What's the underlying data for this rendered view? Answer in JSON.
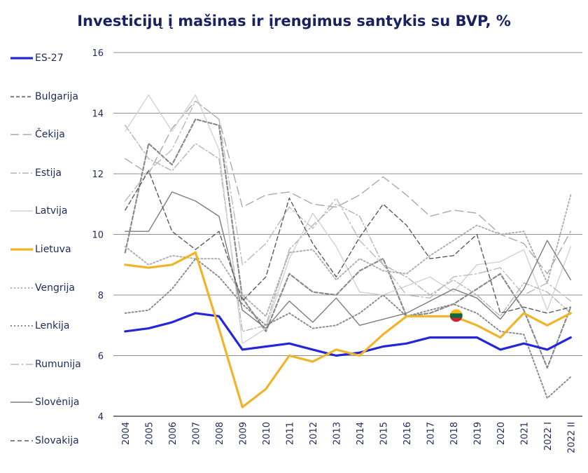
{
  "chart_data": {
    "type": "line",
    "title": "Investicijų į mašinas ir įrengimus santykis su BVP, %",
    "xlabel": "",
    "ylabel": "",
    "ylim": [
      4,
      16
    ],
    "yticks": [
      4,
      6,
      8,
      10,
      12,
      14,
      16
    ],
    "categories": [
      "2004",
      "2005",
      "2006",
      "2007",
      "2008",
      "2009",
      "2010",
      "2011",
      "2012",
      "2013",
      "2014",
      "2015",
      "2016",
      "2017",
      "2018",
      "2019",
      "2020",
      "2021",
      "2022 I",
      "2022 II"
    ],
    "legend_position": "left",
    "series": [
      {
        "name": "ES-27",
        "color": "#2626d9",
        "dash": "",
        "width": 3.2,
        "values": [
          6.8,
          6.9,
          7.1,
          7.4,
          7.3,
          6.2,
          6.3,
          6.4,
          6.2,
          6.0,
          6.1,
          6.3,
          6.4,
          6.6,
          6.6,
          6.6,
          6.2,
          6.4,
          6.2,
          6.6
        ]
      },
      {
        "name": "Bulgarija",
        "color": "#8a8a8a",
        "dash": "5,3",
        "width": 2.2,
        "values": [
          9.4,
          13.0,
          12.3,
          13.8,
          13.6,
          7.9,
          6.8,
          8.7,
          8.1,
          8.0,
          8.8,
          9.2,
          7.3,
          7.4,
          7.7,
          8.2,
          8.7,
          7.5,
          5.6,
          7.6
        ]
      },
      {
        "name": "Čekija",
        "color": "#aaaaaa",
        "dash": "12,6",
        "width": 1.4,
        "values": [
          12.5,
          12.0,
          13.5,
          14.4,
          13.8,
          10.9,
          11.3,
          11.4,
          11.0,
          10.9,
          11.3,
          11.9,
          11.3,
          10.6,
          10.8,
          10.7,
          10.0,
          9.7,
          8.7,
          10.1
        ]
      },
      {
        "name": "Estija",
        "color": "#b4b4b4",
        "dash": "9,3,2,3",
        "width": 1.4,
        "values": [
          13.6,
          12.5,
          12.1,
          13.0,
          12.5,
          6.8,
          7.0,
          9.5,
          10.3,
          11.0,
          10.6,
          9.0,
          8.6,
          8.0,
          8.5,
          8.0,
          7.3,
          8.4,
          8.1,
          7.4
        ]
      },
      {
        "name": "Latvija",
        "color": "#d2d2d2",
        "dash": "",
        "width": 1.4,
        "values": [
          13.4,
          14.6,
          13.4,
          14.6,
          12.8,
          6.4,
          6.9,
          9.2,
          10.7,
          9.6,
          8.1,
          8.0,
          8.3,
          8.6,
          8.1,
          9.0,
          9.1,
          9.5,
          7.5,
          9.6
        ]
      },
      {
        "name": "Lietuva",
        "color": "#f0b429",
        "dash": "",
        "width": 3.2,
        "values": [
          9.0,
          8.9,
          9.0,
          9.4,
          6.9,
          4.3,
          4.9,
          6.0,
          5.8,
          6.2,
          6.0,
          6.7,
          7.3,
          7.3,
          7.3,
          7.0,
          6.6,
          7.4,
          7.0,
          7.4
        ]
      },
      {
        "name": "Vengrija",
        "color": "#b0b0b0",
        "dash": "2,3",
        "width": 2.0,
        "values": [
          9.6,
          9.0,
          9.3,
          9.2,
          9.2,
          8.0,
          7.3,
          9.4,
          9.5,
          8.5,
          9.2,
          8.8,
          8.7,
          9.3,
          9.8,
          10.3,
          10.0,
          10.1,
          8.4,
          11.3
        ]
      },
      {
        "name": "Lenkija",
        "color": "#8c8c8c",
        "dash": "2,3",
        "width": 2.0,
        "values": [
          7.4,
          7.5,
          8.2,
          9.2,
          8.6,
          7.7,
          7.0,
          7.4,
          6.9,
          7.0,
          7.4,
          8.0,
          7.3,
          7.5,
          7.7,
          7.4,
          6.8,
          6.7,
          4.6,
          5.3
        ]
      },
      {
        "name": "Rumunija",
        "color": "#bbbbbb",
        "dash": "12,4,2,4",
        "width": 1.4,
        "values": [
          11.1,
          12.1,
          12.8,
          14.4,
          13.8,
          9.0,
          9.7,
          10.9,
          10.2,
          11.2,
          9.8,
          9.0,
          8.0,
          7.9,
          8.6,
          8.7,
          8.9,
          8.0,
          8.4,
          7.8
        ]
      },
      {
        "name": "Slovėnija",
        "color": "#7d7d7d",
        "dash": "",
        "width": 1.4,
        "values": [
          10.1,
          10.1,
          11.4,
          11.1,
          10.6,
          7.5,
          6.9,
          7.8,
          7.1,
          7.9,
          7.0,
          7.2,
          7.4,
          7.8,
          8.2,
          7.9,
          7.2,
          8.2,
          9.8,
          8.5
        ]
      },
      {
        "name": "Slovakija",
        "color": "#5a5a5a",
        "dash": "6,4",
        "width": 1.4,
        "values": [
          10.8,
          12.1,
          10.1,
          9.5,
          10.1,
          7.8,
          8.6,
          11.2,
          9.7,
          8.6,
          9.9,
          11.0,
          10.3,
          9.2,
          9.3,
          10.0,
          7.4,
          7.6,
          7.4,
          7.6
        ]
      }
    ]
  }
}
